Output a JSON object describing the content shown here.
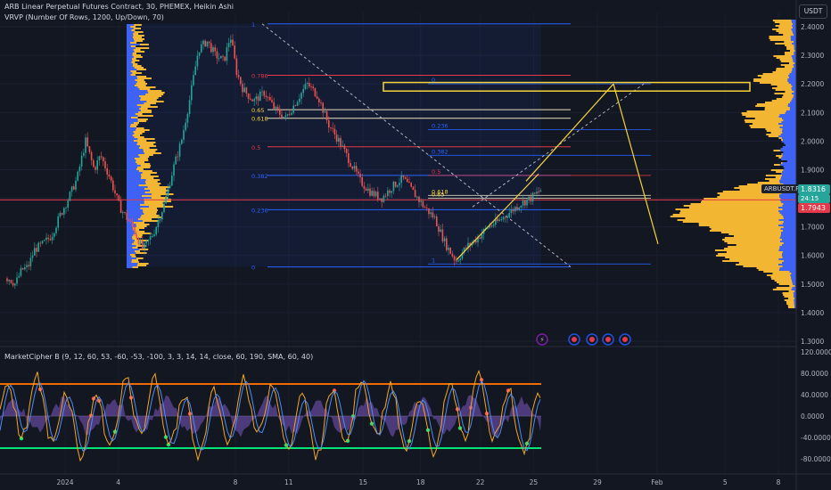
{
  "header": {
    "title": "ARB Linear Perpetual Futures Contract, 30, PHEMEX, Heikin Ashi",
    "indicator1": "VRVP (Number Of Rows, 1200, Up/Down, 70)",
    "indicator2": "MarketCipher B (9, 12, 60, 53, -60, -53, -100, 3, 3, 14, 14, close, 60, 190, SMA, 60, 40)"
  },
  "currency_button": "USDT",
  "price_tags": {
    "symbol": "ARBUSDT.P",
    "last": "1.8316",
    "countdown": "24:15",
    "line": "1.7943"
  },
  "colors": {
    "background": "#131722",
    "up": "#26a69a",
    "down": "#ef5350",
    "volume_profile": "#f2b632",
    "volume_profile_alt": "#3d62f5",
    "fib_blue": "#2962ff",
    "fib_red": "#e53949",
    "annotation_yellow": "#f5d33a",
    "wt_line": "#f5a623",
    "mfi": "#7e57c2"
  },
  "icons": [
    "lightning-icon",
    "event-flag-icon"
  ],
  "chart_data": [
    {
      "type": "candlestick",
      "title": "",
      "x_ticks": [
        "2024",
        "4",
        "8",
        "11",
        "15",
        "18",
        "22",
        "25",
        "29",
        "Feb",
        "5",
        "8"
      ],
      "y_ticks": [
        "2.4000",
        "2.3000",
        "2.2000",
        "2.1000",
        "2.0000",
        "1.9000",
        "1.8000",
        "1.7000",
        "1.6000",
        "1.5000",
        "1.4000",
        "1.3000"
      ],
      "ylim": [
        1.3,
        2.4
      ],
      "last_price": 1.8316,
      "price_line": 1.7943,
      "close_path": [
        [
          0,
          1.52
        ],
        [
          0.3,
          1.5
        ],
        [
          0.6,
          1.55
        ],
        [
          0.9,
          1.56
        ],
        [
          1.2,
          1.62
        ],
        [
          1.6,
          1.64
        ],
        [
          2,
          1.67
        ],
        [
          2.4,
          1.74
        ],
        [
          2.8,
          1.8
        ],
        [
          3.2,
          1.87
        ],
        [
          3.6,
          2.0
        ],
        [
          4.0,
          1.9
        ],
        [
          4.3,
          1.95
        ],
        [
          4.7,
          1.88
        ],
        [
          5.2,
          1.77
        ],
        [
          5.8,
          1.7
        ],
        [
          6.3,
          1.62
        ],
        [
          6.8,
          1.68
        ],
        [
          7.3,
          1.78
        ],
        [
          7.7,
          1.9
        ],
        [
          8.1,
          2.0
        ],
        [
          8.5,
          2.15
        ],
        [
          8.9,
          2.32
        ],
        [
          9.3,
          2.35
        ],
        [
          9.7,
          2.3
        ],
        [
          10.1,
          2.28
        ],
        [
          10.4,
          2.37
        ],
        [
          10.7,
          2.24
        ],
        [
          11.0,
          2.18
        ],
        [
          11.5,
          2.14
        ],
        [
          12.0,
          2.17
        ],
        [
          12.5,
          2.11
        ],
        [
          13.0,
          2.08
        ],
        [
          13.5,
          2.14
        ],
        [
          14.0,
          2.2
        ],
        [
          14.5,
          2.16
        ],
        [
          15.0,
          2.06
        ],
        [
          15.5,
          2.0
        ],
        [
          16.0,
          1.93
        ],
        [
          16.5,
          1.86
        ],
        [
          17.0,
          1.82
        ],
        [
          17.5,
          1.8
        ],
        [
          18.0,
          1.84
        ],
        [
          18.5,
          1.87
        ],
        [
          19.0,
          1.82
        ],
        [
          19.5,
          1.77
        ],
        [
          20.0,
          1.73
        ],
        [
          20.5,
          1.64
        ],
        [
          21.0,
          1.58
        ],
        [
          21.5,
          1.63
        ],
        [
          22.0,
          1.66
        ],
        [
          22.5,
          1.7
        ],
        [
          23.0,
          1.72
        ],
        [
          23.5,
          1.75
        ],
        [
          24.0,
          1.78
        ],
        [
          24.5,
          1.8
        ],
        [
          25.0,
          1.83
        ]
      ],
      "fibonacci_levels": [
        {
          "level": "1",
          "price": 2.41
        },
        {
          "level": "0.786",
          "price": 2.23
        },
        {
          "level": "0.65",
          "price": 2.11
        },
        {
          "level": "0.618",
          "price": 2.08
        },
        {
          "level": "0.5",
          "price": 1.98
        },
        {
          "level": "0.382",
          "price": 1.88
        },
        {
          "level": "0.236",
          "price": 1.76
        },
        {
          "level": "0",
          "price": 1.56
        }
      ],
      "fibonacci_levels_2": [
        {
          "level": "0",
          "price": 2.2
        },
        {
          "level": "0.236",
          "price": 2.04
        },
        {
          "level": "0.382",
          "price": 1.95
        },
        {
          "level": "0.5",
          "price": 1.88
        },
        {
          "level": "0.618",
          "price": 1.81
        },
        {
          "level": "0.65",
          "price": 1.8
        },
        {
          "level": "1",
          "price": 1.57
        }
      ],
      "resistance_zone": [
        2.175,
        2.205
      ]
    },
    {
      "type": "line",
      "title": "",
      "y_ticks": [
        "120.0000",
        "80.0000",
        "40.0000",
        "0.0000",
        "-40.0000",
        "-80.0000"
      ],
      "ylim": [
        -100,
        120
      ],
      "overbought": 60,
      "oversold": -60
    }
  ]
}
